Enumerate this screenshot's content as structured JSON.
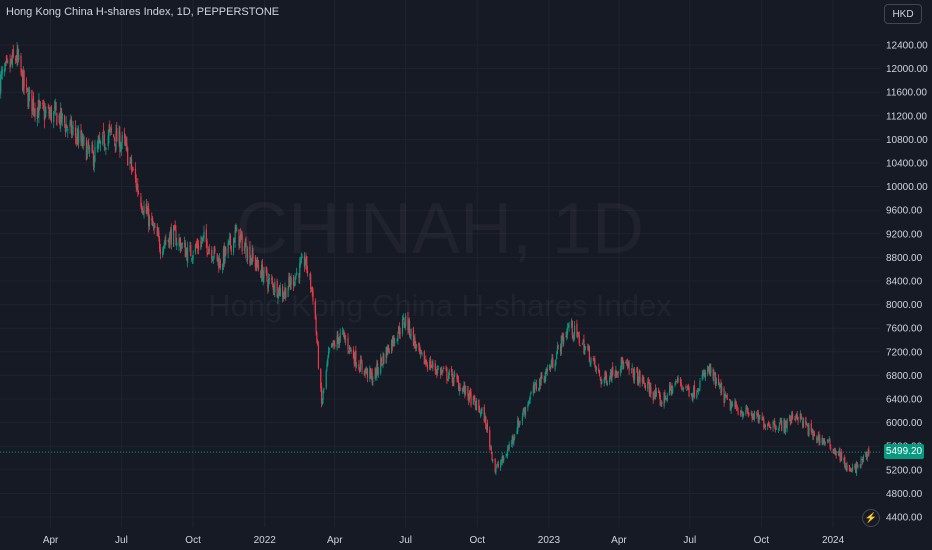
{
  "header": {
    "title": "Hong Kong China H-shares Index, 1D, PEPPERSTONE",
    "currency": "HKD"
  },
  "watermark": {
    "symbol": "CHINAH, 1D",
    "name": "Hong Kong China H-shares Index"
  },
  "current_price": {
    "label": "5499.20",
    "value": 5499.2,
    "color": "#089981"
  },
  "icons": {
    "flash": "flash-icon"
  },
  "colors": {
    "background": "#161a25",
    "up": "#089981",
    "down": "#f23645",
    "grid": "#1f2330",
    "text": "#d1d4dc"
  },
  "chart_data": {
    "type": "candlestick",
    "ylim": [
      4320,
      12560
    ],
    "y_ticks": [
      {
        "value": 12400,
        "label": "12400.00"
      },
      {
        "value": 12000,
        "label": "12000.00"
      },
      {
        "value": 11600,
        "label": "11600.00"
      },
      {
        "value": 11200,
        "label": "11200.00"
      },
      {
        "value": 10800,
        "label": "10800.00"
      },
      {
        "value": 10400,
        "label": "10400.00"
      },
      {
        "value": 10000,
        "label": "10000.00"
      },
      {
        "value": 9600,
        "label": "9600.00"
      },
      {
        "value": 9200,
        "label": "9200.00"
      },
      {
        "value": 8800,
        "label": "8800.00"
      },
      {
        "value": 8400,
        "label": "8400.00"
      },
      {
        "value": 8000,
        "label": "8000.00"
      },
      {
        "value": 7600,
        "label": "7600.00"
      },
      {
        "value": 7200,
        "label": "7200.00"
      },
      {
        "value": 6800,
        "label": "6800.00"
      },
      {
        "value": 6400,
        "label": "6400.00"
      },
      {
        "value": 6000,
        "label": "6000.00"
      },
      {
        "value": 5600,
        "label": "5600.00"
      },
      {
        "value": 5200,
        "label": "5200.00"
      },
      {
        "value": 4800,
        "label": "4800.00"
      },
      {
        "value": 4400,
        "label": "4400.00"
      }
    ],
    "x_ticks": [
      {
        "label": "Apr",
        "date": "2021-04-01"
      },
      {
        "label": "Jul",
        "date": "2021-07-01"
      },
      {
        "label": "Oct",
        "date": "2021-10-01"
      },
      {
        "label": "2022",
        "date": "2022-01-01"
      },
      {
        "label": "Apr",
        "date": "2022-04-01"
      },
      {
        "label": "Jul",
        "date": "2022-07-01"
      },
      {
        "label": "Oct",
        "date": "2022-10-01"
      },
      {
        "label": "2023",
        "date": "2023-01-01"
      },
      {
        "label": "Apr",
        "date": "2023-04-01"
      },
      {
        "label": "Jul",
        "date": "2023-07-01"
      },
      {
        "label": "Oct",
        "date": "2023-10-01"
      },
      {
        "label": "2024",
        "date": "2024-01-01"
      }
    ],
    "xlim": [
      "2021-01-26",
      "2024-02-20"
    ],
    "path": [
      [
        "2021-01-26",
        11800
      ],
      [
        "2021-02-16",
        12200
      ],
      [
        "2021-03-01",
        11550
      ],
      [
        "2021-03-20",
        11250
      ],
      [
        "2021-04-10",
        11200
      ],
      [
        "2021-05-01",
        10900
      ],
      [
        "2021-05-25",
        10500
      ],
      [
        "2021-06-15",
        10900
      ],
      [
        "2021-07-05",
        10700
      ],
      [
        "2021-07-28",
        9700
      ],
      [
        "2021-08-20",
        9000
      ],
      [
        "2021-09-05",
        9200
      ],
      [
        "2021-09-25",
        8850
      ],
      [
        "2021-10-15",
        9100
      ],
      [
        "2021-11-05",
        8700
      ],
      [
        "2021-11-25",
        9200
      ],
      [
        "2021-12-15",
        8800
      ],
      [
        "2022-01-05",
        8400
      ],
      [
        "2022-01-25",
        8200
      ],
      [
        "2022-02-10",
        8500
      ],
      [
        "2022-02-22",
        8750
      ],
      [
        "2022-03-05",
        8100
      ],
      [
        "2022-03-15",
        6300
      ],
      [
        "2022-03-25",
        7200
      ],
      [
        "2022-04-10",
        7500
      ],
      [
        "2022-05-01",
        7000
      ],
      [
        "2022-05-20",
        6750
      ],
      [
        "2022-06-10",
        7300
      ],
      [
        "2022-07-01",
        7750
      ],
      [
        "2022-07-20",
        7100
      ],
      [
        "2022-08-10",
        6900
      ],
      [
        "2022-09-01",
        6750
      ],
      [
        "2022-09-20",
        6450
      ],
      [
        "2022-10-10",
        6100
      ],
      [
        "2022-10-24",
        5200
      ],
      [
        "2022-11-05",
        5400
      ],
      [
        "2022-11-20",
        5900
      ],
      [
        "2022-12-10",
        6500
      ],
      [
        "2023-01-05",
        7000
      ],
      [
        "2023-01-27",
        7650
      ],
      [
        "2023-02-20",
        7200
      ],
      [
        "2023-03-10",
        6700
      ],
      [
        "2023-04-05",
        7000
      ],
      [
        "2023-05-01",
        6700
      ],
      [
        "2023-05-25",
        6350
      ],
      [
        "2023-06-15",
        6700
      ],
      [
        "2023-07-05",
        6500
      ],
      [
        "2023-07-25",
        6900
      ],
      [
        "2023-08-20",
        6300
      ],
      [
        "2023-09-15",
        6150
      ],
      [
        "2023-10-05",
        6000
      ],
      [
        "2023-10-30",
        5950
      ],
      [
        "2023-11-15",
        6150
      ],
      [
        "2023-12-05",
        5800
      ],
      [
        "2023-12-25",
        5650
      ],
      [
        "2024-01-10",
        5450
      ],
      [
        "2024-01-22",
        5150
      ],
      [
        "2024-02-05",
        5300
      ],
      [
        "2024-02-16",
        5499
      ]
    ]
  }
}
